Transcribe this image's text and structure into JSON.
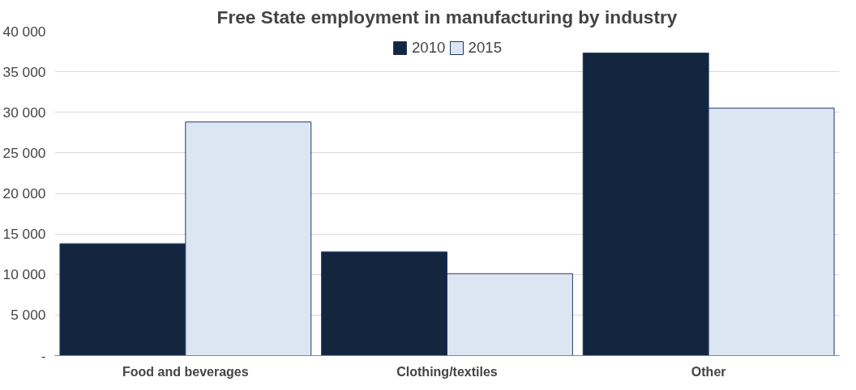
{
  "chart_data": {
    "type": "bar",
    "title": "Free State employment in manufacturing by industry",
    "categories": [
      "Food and beverages",
      "Clothing/textiles",
      "Other"
    ],
    "series": [
      {
        "name": "2010",
        "color": "#14253f",
        "values": [
          13800,
          12800,
          37300
        ]
      },
      {
        "name": "2015",
        "color": "#dce6f2",
        "values": [
          28800,
          10100,
          30500
        ]
      }
    ],
    "ylim": [
      0,
      40000
    ],
    "yticks": [
      {
        "value": 0,
        "label": "-"
      },
      {
        "value": 5000,
        "label": "5 000"
      },
      {
        "value": 10000,
        "label": "10 000"
      },
      {
        "value": 15000,
        "label": "15 000"
      },
      {
        "value": 20000,
        "label": "20 000"
      },
      {
        "value": 25000,
        "label": "25 000"
      },
      {
        "value": 30000,
        "label": "30 000"
      },
      {
        "value": 35000,
        "label": "35 000"
      },
      {
        "value": 40000,
        "label": "40 000"
      }
    ],
    "grid": "y",
    "legend": "top"
  }
}
